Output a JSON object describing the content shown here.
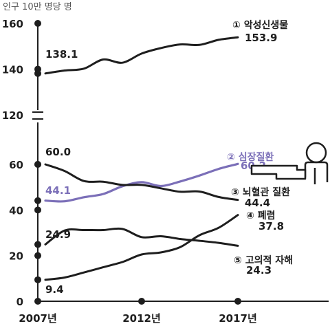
{
  "chart_data": {
    "type": "line",
    "unit_label": "인구 10만 명당 명",
    "x": [
      2007,
      2008,
      2009,
      2010,
      2011,
      2012,
      2013,
      2014,
      2015,
      2016,
      2017
    ],
    "x_tick_labels": [
      "2007년",
      "2012년",
      "2017년"
    ],
    "y_tick_labels_upper": [
      "160",
      "140",
      "120"
    ],
    "y_tick_labels_lower": [
      "60",
      "40",
      "20",
      "0"
    ],
    "y_upper_range": [
      120,
      160
    ],
    "y_lower_range": [
      0,
      60
    ],
    "axis_break": true,
    "series": [
      {
        "name": "① 악성신생물",
        "color": "#1e1e1e",
        "panel": "upper",
        "start_label": "138.1",
        "end_label": "153.9",
        "values": [
          138.1,
          139.4,
          140.2,
          144.2,
          142.8,
          146.8,
          149.2,
          150.8,
          150.6,
          152.8,
          153.9
        ]
      },
      {
        "name": "② 심장질환",
        "color": "#7b6fb8",
        "panel": "lower",
        "start_label": "44.1",
        "end_label": "60.2",
        "values": [
          44.1,
          43.8,
          45.6,
          47.0,
          50.4,
          52.2,
          50.5,
          52.5,
          55.1,
          58.0,
          60.2
        ]
      },
      {
        "name": "③ 뇌혈관 질환",
        "color": "#1e1e1e",
        "panel": "lower",
        "start_label": "60.0",
        "end_label": "44.4",
        "values": [
          60.0,
          57.1,
          52.7,
          52.4,
          51.0,
          51.0,
          49.5,
          48.0,
          48.1,
          45.7,
          44.4
        ]
      },
      {
        "name": "④ 폐렴",
        "color": "#1e1e1e",
        "panel": "lower",
        "start_label": "9.4",
        "end_label": "37.8",
        "values": [
          9.4,
          10.4,
          12.6,
          14.9,
          17.2,
          20.5,
          21.4,
          23.7,
          28.9,
          32.2,
          37.8
        ]
      },
      {
        "name": "⑤ 고의적 자해",
        "color": "#1e1e1e",
        "panel": "lower",
        "start_label": "24.9",
        "end_label": "24.3",
        "values": [
          24.9,
          31.0,
          31.2,
          31.2,
          31.7,
          28.1,
          28.5,
          27.3,
          26.5,
          25.6,
          24.3
        ]
      }
    ]
  }
}
